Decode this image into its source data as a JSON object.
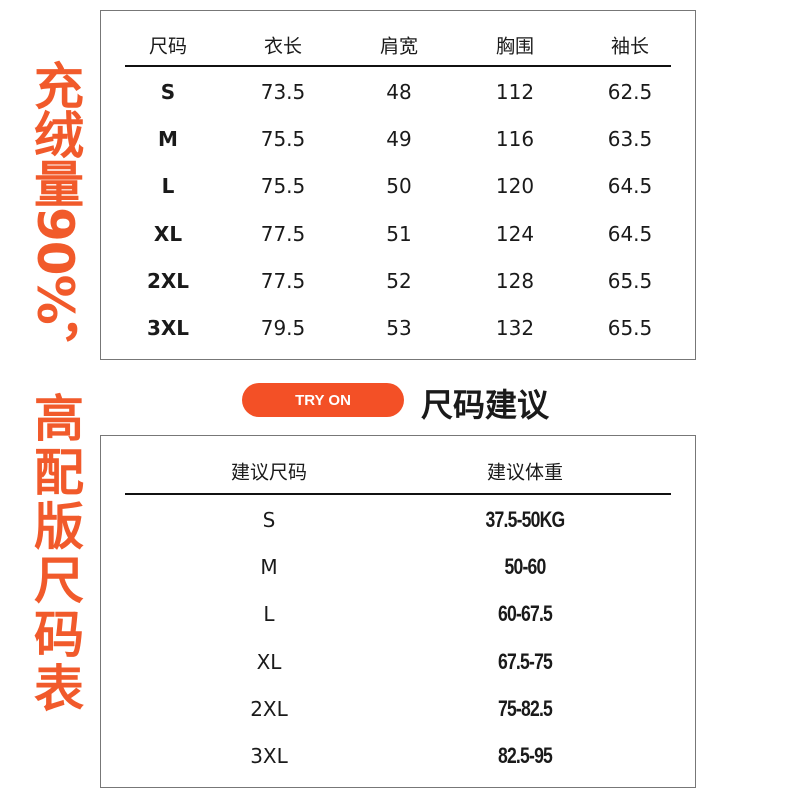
{
  "side_text": {
    "line1": "充绒量90%，",
    "line2": "高配版尺码表"
  },
  "size_table": {
    "headers": [
      "尺码",
      "衣长",
      "肩宽",
      "胸围",
      "袖长"
    ],
    "rows": [
      [
        "S",
        "73.5",
        "48",
        "112",
        "62.5"
      ],
      [
        "M",
        "75.5",
        "49",
        "116",
        "63.5"
      ],
      [
        "L",
        "75.5",
        "50",
        "120",
        "64.5"
      ],
      [
        "XL",
        "77.5",
        "51",
        "124",
        "64.5"
      ],
      [
        "2XL",
        "77.5",
        "52",
        "128",
        "65.5"
      ],
      [
        "3XL",
        "79.5",
        "53",
        "132",
        "65.5"
      ]
    ]
  },
  "try_on": {
    "button_label": "TRY ON",
    "title": "尺码建议"
  },
  "recommend_table": {
    "headers": [
      "建议尺码",
      "建议体重"
    ],
    "rows": [
      [
        "S",
        "37.5-50KG"
      ],
      [
        "M",
        "50-60"
      ],
      [
        "L",
        "60-67.5"
      ],
      [
        "XL",
        "67.5-75"
      ],
      [
        "2XL",
        "75-82.5"
      ],
      [
        "3XL",
        "82.5-95"
      ]
    ]
  },
  "colors": {
    "accent": "#f15a2b",
    "button": "#f35026"
  }
}
